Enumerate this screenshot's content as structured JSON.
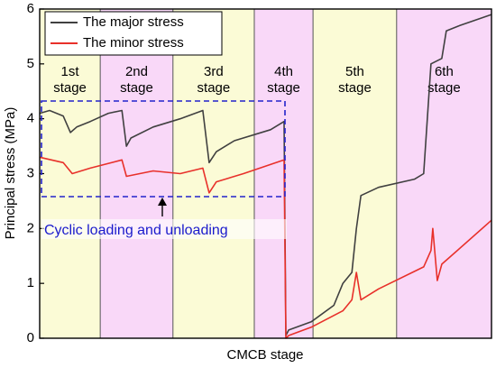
{
  "chart_data": {
    "type": "line",
    "y_label": "Principal stress (MPa)",
    "x_label": "CMCB stage",
    "annotation": "Cyclic loading and unloading",
    "xlim": [
      0,
      100
    ],
    "ylim": [
      0,
      6
    ],
    "yticks": [
      0,
      1,
      2,
      3,
      4,
      5,
      6
    ],
    "legend": "upper left",
    "stages": [
      {
        "label": [
          "1st",
          "stage"
        ],
        "x": [
          0,
          13.4
        ],
        "color": "#fbfbd6"
      },
      {
        "label": [
          "2nd",
          "stage"
        ],
        "x": [
          13.4,
          29.5
        ],
        "color": "#f9d8f8"
      },
      {
        "label": [
          "3rd",
          "stage"
        ],
        "x": [
          29.5,
          47.5
        ],
        "color": "#fbfbd6"
      },
      {
        "label": [
          "4th",
          "stage"
        ],
        "x": [
          47.5,
          60.5
        ],
        "color": "#f9d8f8"
      },
      {
        "label": [
          "5th",
          "stage"
        ],
        "x": [
          60.5,
          79.0
        ],
        "color": "#fbfbd6"
      },
      {
        "label": [
          "6th",
          "stage"
        ],
        "x": [
          79.0,
          100
        ],
        "color": "#f9d8f8"
      }
    ],
    "series": [
      {
        "name": "The major stress",
        "color": "#404040",
        "x": [
          0,
          2.2,
          5.2,
          6.8,
          8.2,
          11.2,
          15.2,
          18.2,
          19.2,
          20.2,
          25.1,
          31.1,
          36.1,
          37.5,
          39.1,
          43.1,
          51.1,
          54.1,
          54.5,
          55.1,
          60.1,
          65.1,
          67.1,
          69.1,
          70.1,
          71.1,
          75.0,
          83.0,
          85.0,
          86.6,
          89.0,
          90.0,
          93.0,
          100
        ],
        "values": [
          4.1,
          4.15,
          4.05,
          3.75,
          3.85,
          3.95,
          4.1,
          4.15,
          3.5,
          3.65,
          3.85,
          4.0,
          4.15,
          3.2,
          3.4,
          3.6,
          3.8,
          3.95,
          0.05,
          0.15,
          0.3,
          0.6,
          1.0,
          1.2,
          2.0,
          2.6,
          2.75,
          2.9,
          3.0,
          5.0,
          5.1,
          5.6,
          5.7,
          5.9
        ]
      },
      {
        "name": "The minor stress",
        "color": "#e8302a",
        "x": [
          0,
          5.2,
          7.2,
          11.2,
          18.2,
          19.2,
          25.1,
          31.1,
          36.1,
          37.5,
          39.1,
          45.1,
          54.1,
          54.5,
          55.1,
          60.1,
          67.1,
          69.1,
          70.1,
          71.1,
          75.0,
          85.0,
          86.6,
          87.0,
          88.0,
          89.0,
          100
        ],
        "values": [
          3.3,
          3.2,
          3.0,
          3.1,
          3.25,
          2.95,
          3.05,
          3.0,
          3.1,
          2.65,
          2.85,
          3.0,
          3.25,
          0.0,
          0.05,
          0.2,
          0.5,
          0.7,
          1.2,
          0.7,
          0.9,
          1.3,
          1.6,
          2.0,
          1.05,
          1.35,
          2.15
        ]
      }
    ]
  }
}
